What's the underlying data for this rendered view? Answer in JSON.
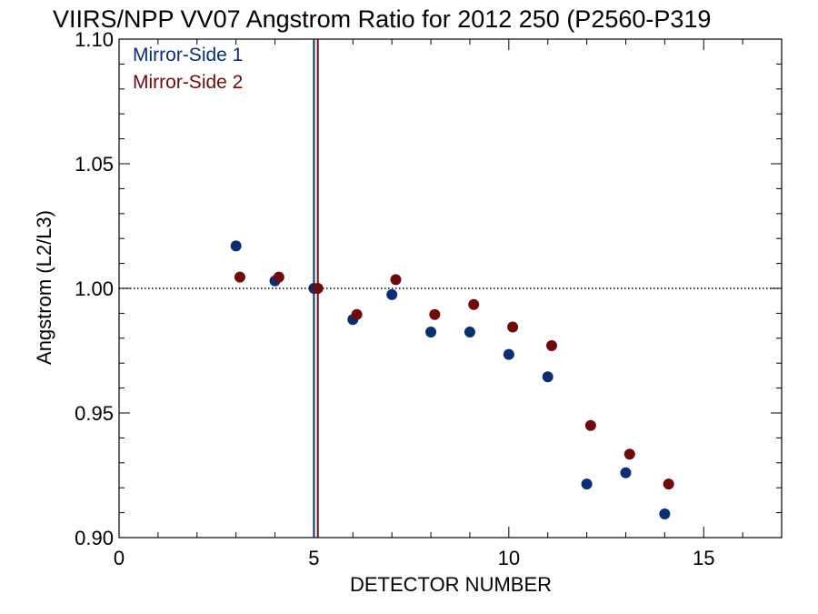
{
  "chart_data": {
    "type": "scatter",
    "title": "VIIRS/NPP VV07 Angstrom Ratio for 2012 250 (P2560-P319",
    "xlabel": "DETECTOR NUMBER",
    "ylabel": "Angstrom (L2/L3)",
    "xlim": [
      0,
      17
    ],
    "ylim": [
      0.9,
      1.1
    ],
    "x_ticks": [
      0,
      5,
      10,
      15
    ],
    "x_tick_labels": [
      "0",
      "5",
      "10",
      "15"
    ],
    "y_ticks": [
      0.9,
      0.95,
      1.0,
      1.05,
      1.1
    ],
    "y_tick_labels": [
      "0.90",
      "0.95",
      "1.00",
      "1.05",
      "1.10"
    ],
    "grid": false,
    "legend_position": "top-left",
    "reference_line": {
      "y": 1.0,
      "style": "dotted",
      "color": "#000000"
    },
    "vertical_lines": [
      {
        "x": 5.0,
        "color": "#0b2f6e"
      },
      {
        "x": 5.1,
        "color": "#6e0b0b"
      }
    ],
    "series": [
      {
        "name": "Mirror-Side 1",
        "color": "#0b2f6e",
        "x": [
          3,
          4,
          5,
          6,
          7,
          8,
          9,
          10,
          11,
          12,
          13,
          14
        ],
        "y": [
          1.017,
          1.003,
          1.0,
          0.9875,
          0.9975,
          0.9825,
          0.9825,
          0.9735,
          0.9645,
          0.9215,
          0.926,
          0.9095
        ]
      },
      {
        "name": "Mirror-Side 2",
        "color": "#6e0b0b",
        "x": [
          3.1,
          4.1,
          5.1,
          6.1,
          7.1,
          8.1,
          9.1,
          10.1,
          11.1,
          12.1,
          13.1,
          14.1
        ],
        "y": [
          1.0045,
          1.0045,
          1.0,
          0.9895,
          1.0035,
          0.9895,
          0.9935,
          0.9845,
          0.977,
          0.945,
          0.9335,
          0.9215
        ]
      }
    ]
  }
}
